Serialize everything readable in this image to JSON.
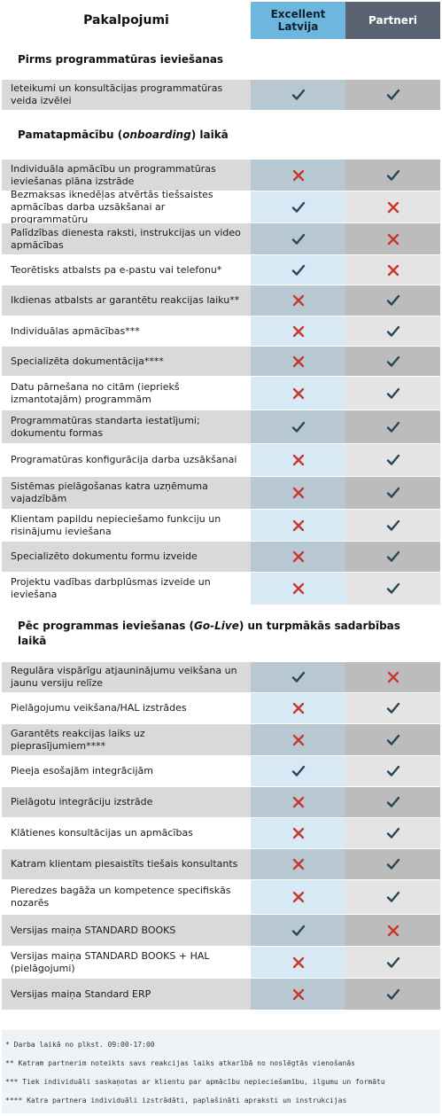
{
  "header": {
    "col1": "Pakalpojumi",
    "col2": "Excellent Latvija",
    "col3": "Partneri"
  },
  "sections": [
    {
      "title": [
        "Pirms programmatūras ieviešanas"
      ],
      "rows": [
        {
          "label": "Ieteikumi un konsultācijas programmatūras veida izvēlei",
          "excellent": true,
          "partner": true
        }
      ]
    },
    {
      "title": [
        "Pamatapmācību (",
        "onboarding",
        ") laikā"
      ],
      "rows": [
        {
          "label": "Individuāla apmācību un programmatūras ieviešanas plāna izstrāde",
          "excellent": false,
          "partner": true
        },
        {
          "label": "Bezmaksas iknedēļas atvērtās tiešsaistes apmācības darba uzsākšanai ar programmatūru",
          "excellent": true,
          "partner": false
        },
        {
          "label": "Palīdzības dienesta raksti, instrukcijas un video apmācības",
          "excellent": true,
          "partner": false
        },
        {
          "label": "Teorētisks atbalsts pa e-pastu vai telefonu*",
          "excellent": true,
          "partner": false
        },
        {
          "label": "Ikdienas atbalsts ar garantētu reakcijas laiku**",
          "excellent": false,
          "partner": true
        },
        {
          "label": "Individuālas apmācības***",
          "excellent": false,
          "partner": true
        },
        {
          "label": "Specializēta dokumentācija****",
          "excellent": false,
          "partner": true
        },
        {
          "label": "Datu pārnešana no citām (iepriekš izmantotajām) programmām",
          "excellent": false,
          "partner": true
        },
        {
          "label": "Programmatūras standarta iestatījumi; dokumentu formas",
          "excellent": true,
          "partner": true
        },
        {
          "label": "Programatūras konfigurācija darba uzsākšanai",
          "excellent": false,
          "partner": true
        },
        {
          "label": "Sistēmas pielāgošanas katra uzņēmuma vajadzībām",
          "excellent": false,
          "partner": true
        },
        {
          "label": "Klientam papildu nepieciešamo funkciju un risinājumu ieviešana",
          "excellent": false,
          "partner": true
        },
        {
          "label": "Specializēto dokumentu formu izveide",
          "excellent": false,
          "partner": true
        },
        {
          "label": "Projektu vadības darbplūsmas izveide un ieviešana",
          "excellent": false,
          "partner": true
        }
      ]
    },
    {
      "title": [
        "Pēc programmas ieviešanas (",
        "Go-Live",
        ") un turpmākās sadarbības laikā"
      ],
      "rows": [
        {
          "label": "Regulāra vispārīgu atjauninājumu veikšana un jaunu versiju relīze",
          "excellent": true,
          "partner": false
        },
        {
          "label": "Pielāgojumu veikšana/HAL izstrādes",
          "excellent": false,
          "partner": true
        },
        {
          "label": "Garantēts reakcijas laiks uz pieprasījumiem****",
          "excellent": false,
          "partner": true
        },
        {
          "label": "Pieeja esošajām integrācijām",
          "excellent": true,
          "partner": true
        },
        {
          "label": "Pielāgotu integrāciju izstrāde",
          "excellent": false,
          "partner": true
        },
        {
          "label": "Klātienes konsultācijas un apmācības",
          "excellent": false,
          "partner": true
        },
        {
          "label": "Katram klientam piesaistīts tiešais konsultants",
          "excellent": false,
          "partner": true
        },
        {
          "label": "Pieredzes bagāža un kompetence specifiskās nozarēs",
          "excellent": false,
          "partner": true
        },
        {
          "label": "Versijas maiņa STANDARD BOOKS",
          "excellent": true,
          "partner": false
        },
        {
          "label": "Versijas maiņa STANDARD BOOKS + HAL (pielāgojumi)",
          "excellent": false,
          "partner": true
        },
        {
          "label": "Versijas maiņa Standard ERP",
          "excellent": false,
          "partner": true
        }
      ]
    }
  ],
  "footnotes": [
    "* Darba laikā no plkst. 09:00-17:00",
    "** Katram partnerim noteikts savs reakcijas laiks atkarībā no noslēgtās vienošanās",
    "*** Tiek individuāli saskaņotas ar klientu par apmācību nepieciešamību, ilgumu un formātu",
    "**** Katra partnera individuāli izstrādāti, paplašināti apraksti un instrukcijas"
  ]
}
